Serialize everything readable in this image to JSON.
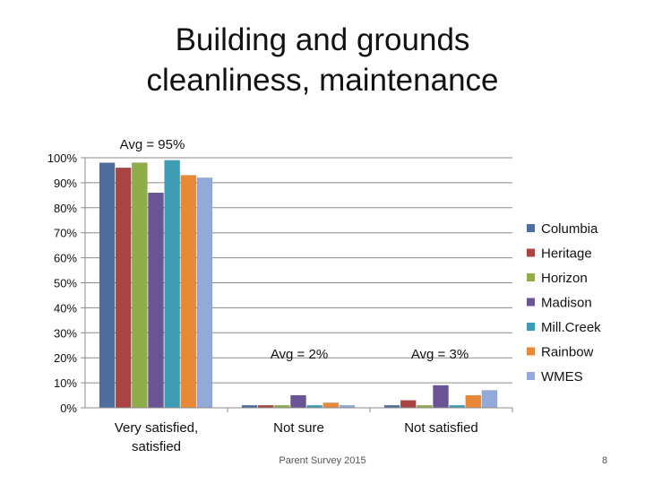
{
  "title_lines": [
    "Building and grounds",
    "cleanliness, maintenance"
  ],
  "footer": "Parent Survey 2015",
  "page_number": "8",
  "chart_data": {
    "type": "bar",
    "categories": [
      [
        "Very satisfied,",
        "satisfied"
      ],
      [
        "Not sure"
      ],
      [
        "Not satisfied"
      ]
    ],
    "series": [
      {
        "name": "Columbia",
        "color": "#4F6EA0",
        "values": [
          98,
          1,
          1
        ]
      },
      {
        "name": "Heritage",
        "color": "#A94442",
        "values": [
          96,
          1,
          3
        ]
      },
      {
        "name": "Horizon",
        "color": "#8FAE4A",
        "values": [
          98,
          1,
          1
        ]
      },
      {
        "name": "Madison",
        "color": "#6B5494",
        "values": [
          86,
          5,
          9
        ]
      },
      {
        "name": "Mill.Creek",
        "color": "#3F9DB3",
        "values": [
          99,
          1,
          1
        ]
      },
      {
        "name": "Rainbow",
        "color": "#E8893A",
        "values": [
          93,
          2,
          5
        ]
      },
      {
        "name": "WMES",
        "color": "#93AAD8",
        "values": [
          92,
          1,
          7
        ]
      }
    ],
    "annotations": [
      "Avg = 95%",
      "Avg = 2%",
      "Avg = 3%"
    ],
    "yticks": [
      "0%",
      "10%",
      "20%",
      "30%",
      "40%",
      "50%",
      "60%",
      "70%",
      "80%",
      "90%",
      "100%"
    ],
    "ylim": [
      0,
      100
    ],
    "grid": true,
    "legend": "right"
  }
}
